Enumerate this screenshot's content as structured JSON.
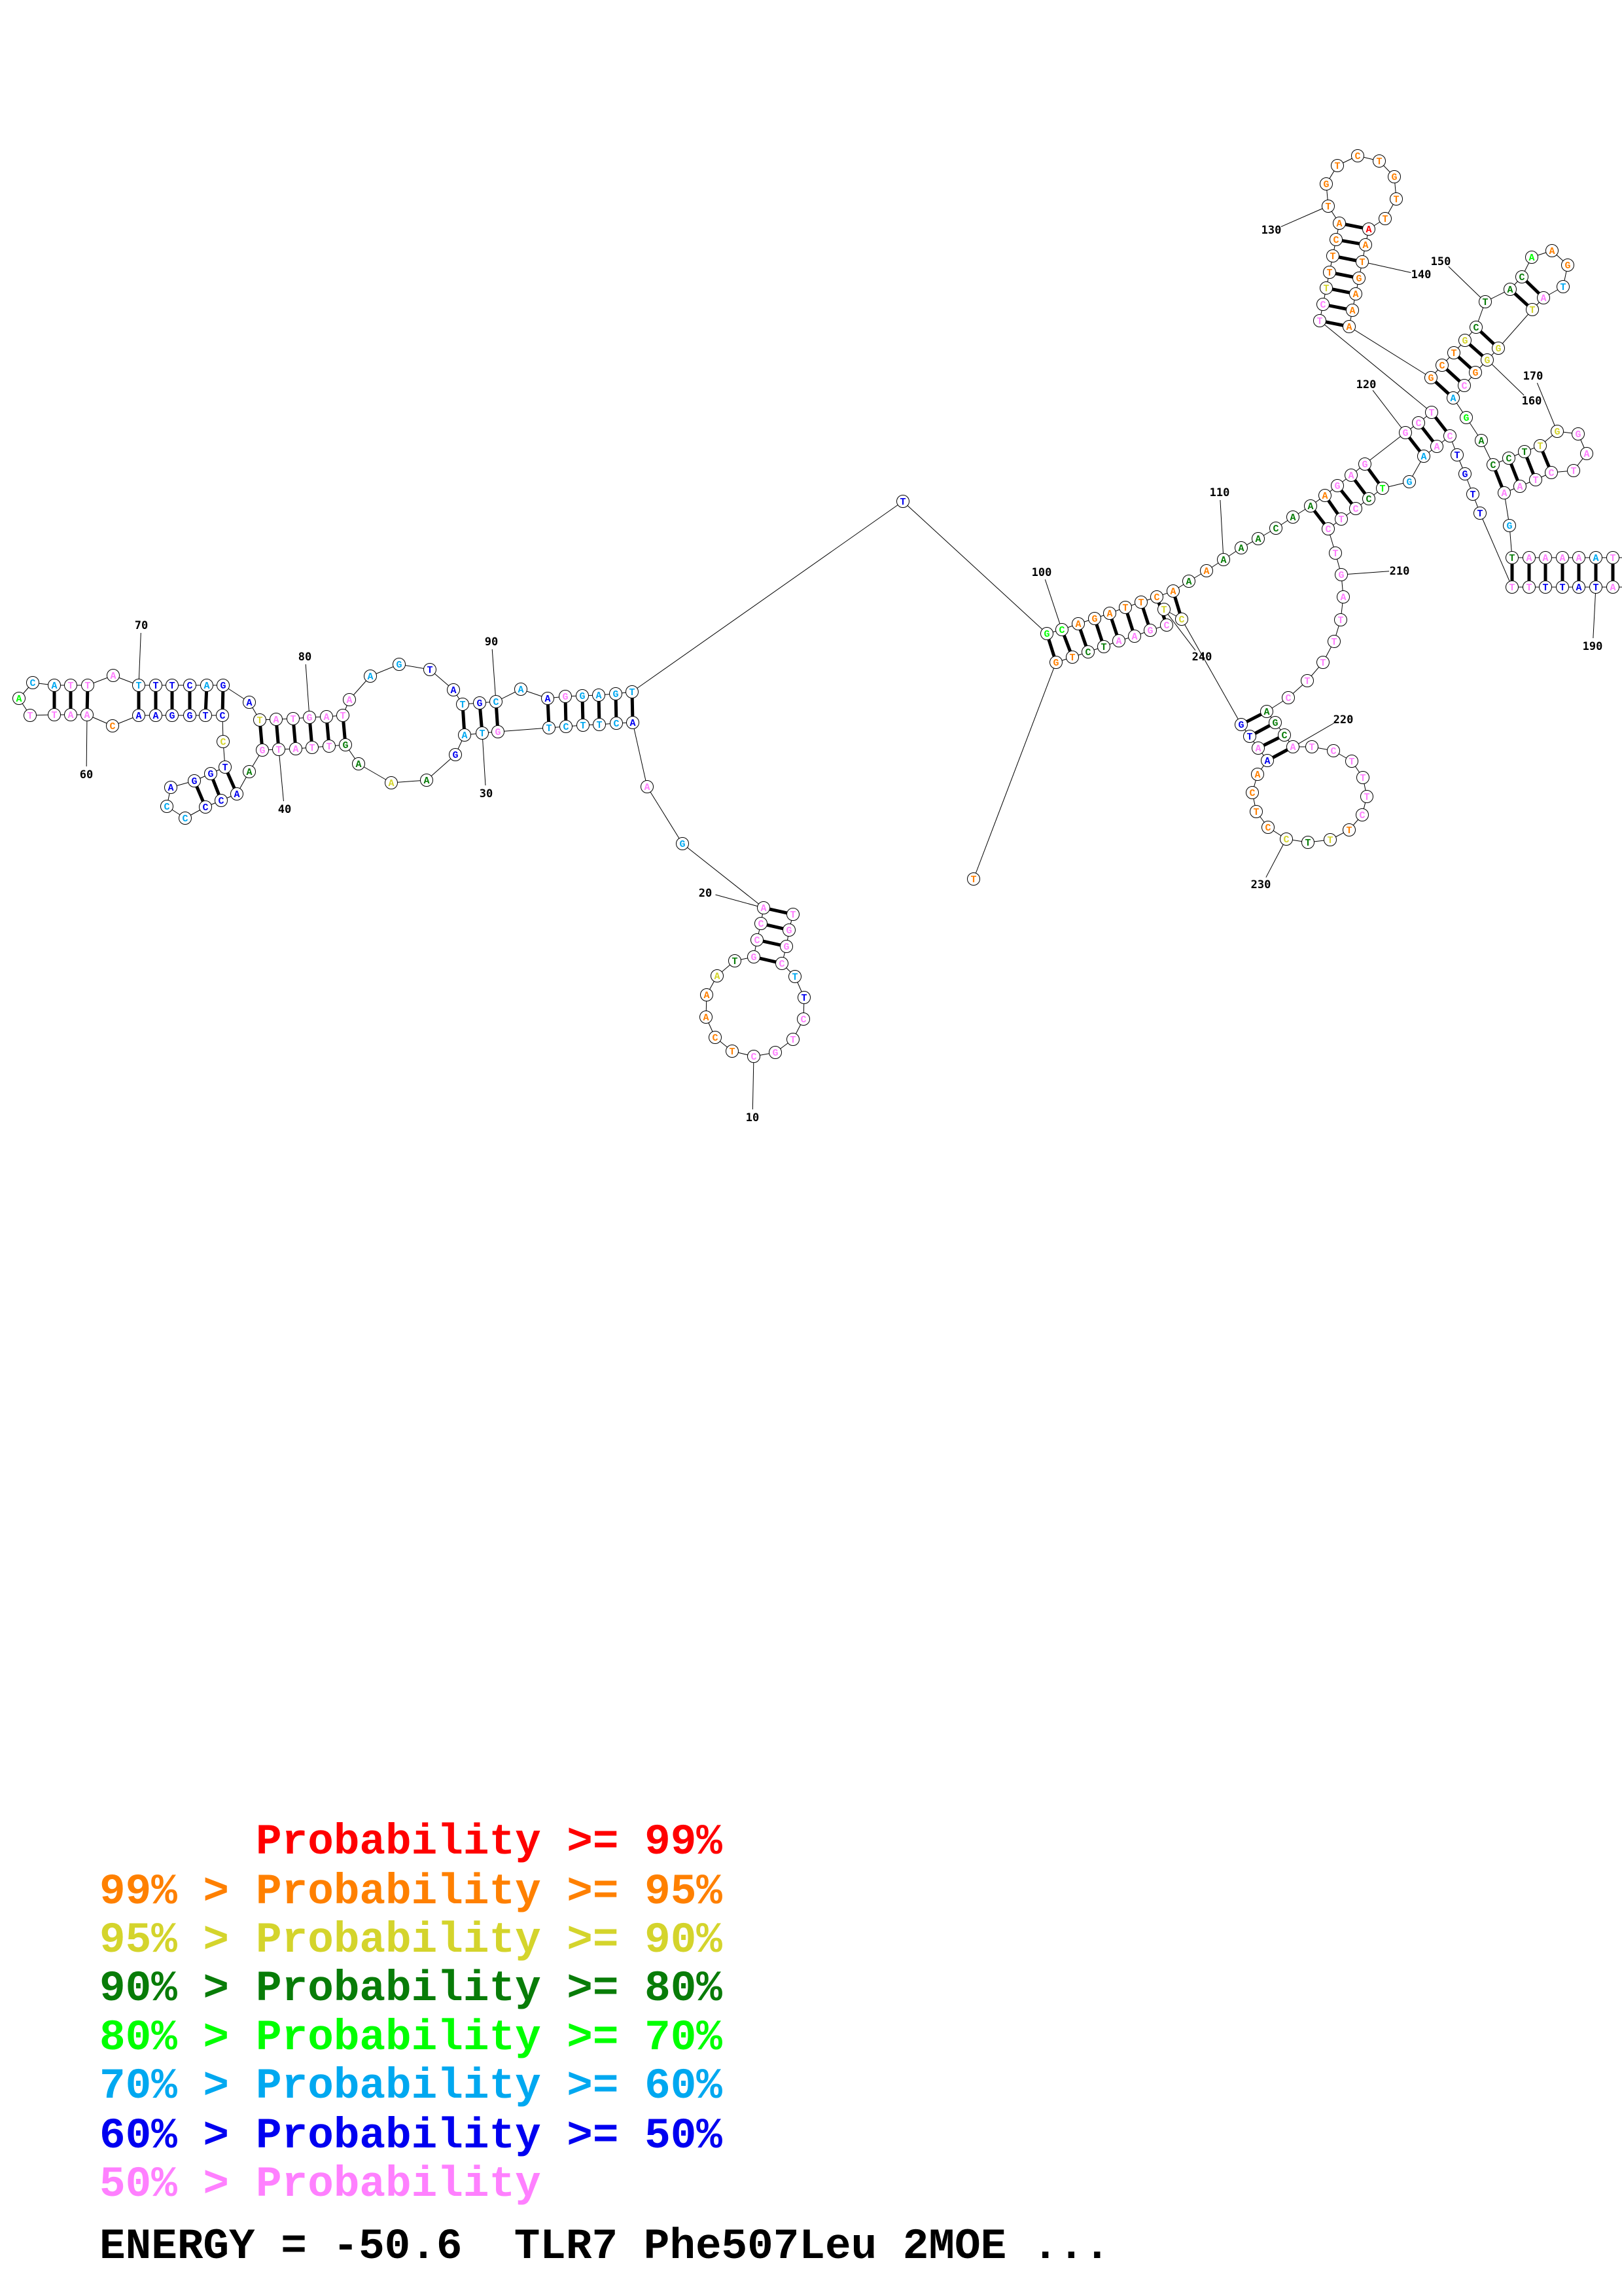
{
  "structure": {
    "sequence": "TGGCTTCTGCTCAAATGCCAGAACTTCTGTAGAAAGTTATGAACCCCAGGTCCTGGAACAATTACATTATTTCAGATATGATAAGTATGCAAGGAGTTGCAGATTCAAAAAACAAAGAGGCTTCTTTCATGTCTGTTAATGAAAGCTGCTACAAGTATGGGCAGACCTTGGATCTAAGTAAAAATATATTTTTTGTCAAGTCCTCTGATTTTCAGCATCTTTCTTTCCTCAAATGCTCGAATCTGTC",
    "colors": "ppppcbppppooooygppppcpbcccccpccbgyggpppppgbbbccbbbbybbbbbbopppplccpppcbbbcbbyppppppccbbcbccbpccccbllooooooogoggggggoppppppppyooooooooooooroooooooooyggggloocpyyyopclggggyypppppppcgppppcppbbbbppbbbbppcclgpppppppppppgggpppppppoygyoooobpbbyyppppggoooooool",
    "hidden_range_note": "",
    "pairs": [
      [
        20,
        1
      ],
      [
        19,
        2
      ],
      [
        18,
        3
      ],
      [
        17,
        4
      ],
      [
        92,
        28
      ],
      [
        93,
        27
      ],
      [
        94,
        26
      ],
      [
        95,
        25
      ],
      [
        96,
        24
      ],
      [
        97,
        23
      ],
      [
        88,
        31
      ],
      [
        89,
        30
      ],
      [
        90,
        29
      ],
      [
        77,
        41
      ],
      [
        78,
        40
      ],
      [
        79,
        39
      ],
      [
        80,
        38
      ],
      [
        81,
        37
      ],
      [
        82,
        36
      ],
      [
        51,
        43
      ],
      [
        50,
        44
      ],
      [
        49,
        45
      ],
      [
        70,
        58
      ],
      [
        71,
        57
      ],
      [
        72,
        56
      ],
      [
        73,
        55
      ],
      [
        74,
        54
      ],
      [
        75,
        53
      ],
      [
        66,
        62
      ],
      [
        67,
        61
      ],
      [
        68,
        60
      ],
      [
        99,
        248
      ],
      [
        100,
        247
      ],
      [
        101,
        246
      ],
      [
        102,
        245
      ],
      [
        103,
        244
      ],
      [
        104,
        243
      ],
      [
        105,
        242
      ],
      [
        106,
        241
      ],
      [
        107,
        239
      ],
      [
        115,
        208
      ],
      [
        116,
        207
      ],
      [
        117,
        206
      ],
      [
        118,
        205
      ],
      [
        119,
        204
      ],
      [
        120,
        202
      ],
      [
        121,
        201
      ],
      [
        122,
        200
      ],
      [
        123,
        144
      ],
      [
        124,
        143
      ],
      [
        125,
        142
      ],
      [
        126,
        141
      ],
      [
        127,
        140
      ],
      [
        128,
        139
      ],
      [
        129,
        138
      ],
      [
        145,
        163
      ],
      [
        146,
        162
      ],
      [
        147,
        161
      ],
      [
        148,
        160
      ],
      [
        149,
        159
      ],
      [
        151,
        158
      ],
      [
        152,
        157
      ],
      [
        166,
        177
      ],
      [
        167,
        176
      ],
      [
        168,
        175
      ],
      [
        169,
        174
      ],
      [
        179,
        195
      ],
      [
        180,
        194
      ],
      [
        181,
        193
      ],
      [
        182,
        192
      ],
      [
        183,
        191
      ],
      [
        184,
        190
      ],
      [
        185,
        189
      ],
      [
        217,
        238
      ],
      [
        218,
        237
      ],
      [
        219,
        236
      ],
      [
        220,
        235
      ]
    ],
    "position_labels": [
      "10",
      "20",
      "30",
      "40",
      "60",
      "70",
      "80",
      "90",
      "100",
      "110",
      "120",
      "130",
      "140",
      "150",
      "160",
      "170",
      "190",
      "210",
      "220",
      "230",
      "240"
    ]
  },
  "probability_colors": {
    "r": "#ff0000",
    "o": "#ff8000",
    "y": "#d4d42c",
    "g": "#087c08",
    "l": "#00ff00",
    "c": "#00a8f0",
    "b": "#0000f0",
    "p": "#ff80ff"
  },
  "legend": [
    {
      "prefix": "",
      "text": "Probability >= 99%",
      "color": "#ff0000"
    },
    {
      "prefix": "99% >",
      "text": "Probability >= 95%",
      "color": "#ff8000"
    },
    {
      "prefix": "95% >",
      "text": "Probability >= 90%",
      "color": "#d4d42c"
    },
    {
      "prefix": "90% >",
      "text": "Probability >= 80%",
      "color": "#087c08"
    },
    {
      "prefix": "80% >",
      "text": "Probability >= 70%",
      "color": "#00ff00"
    },
    {
      "prefix": "70% >",
      "text": "Probability >= 60%",
      "color": "#00a8f0"
    },
    {
      "prefix": "60% >",
      "text": "Probability >= 50%",
      "color": "#0000f0"
    },
    {
      "prefix": "50% >",
      "text": "Probability",
      "color": "#ff80ff"
    }
  ],
  "footer": {
    "energy_line": "ENERGY = -50.6  TLR7 Phe507Leu 2MOE ..."
  }
}
